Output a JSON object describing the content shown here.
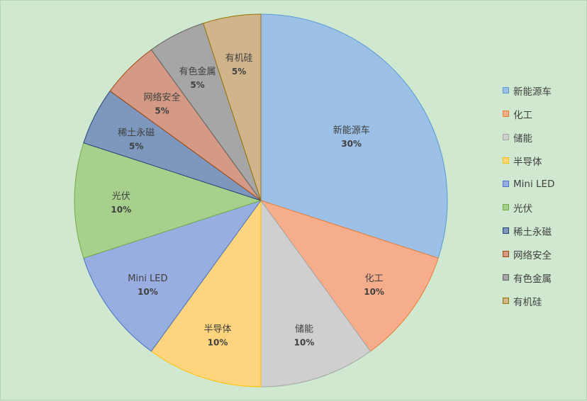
{
  "chart_data": {
    "type": "pie",
    "slices": [
      {
        "label": "新能源车",
        "value": 30,
        "pct_label": "30%",
        "color": "#9dc0e6",
        "edge": "#5b9bd5"
      },
      {
        "label": "化工",
        "value": 10,
        "pct_label": "10%",
        "color": "#f6ad8c",
        "edge": "#ed7d31"
      },
      {
        "label": "储能",
        "value": 10,
        "pct_label": "10%",
        "color": "#cfcfcf",
        "edge": "#a5a5a5"
      },
      {
        "label": "半导体",
        "value": 10,
        "pct_label": "10%",
        "color": "#ffd47f",
        "edge": "#ffc000"
      },
      {
        "label": "Mini LED",
        "value": 10,
        "pct_label": "10%",
        "color": "#98ade0",
        "edge": "#4472c4"
      },
      {
        "label": "光伏",
        "value": 10,
        "pct_label": "10%",
        "color": "#a8d08d",
        "edge": "#70ad47"
      },
      {
        "label": "稀土永磁",
        "value": 5,
        "pct_label": "5%",
        "color": "#7d97bd",
        "edge": "#264478"
      },
      {
        "label": "网络安全",
        "value": 5,
        "pct_label": "5%",
        "color": "#d49a85",
        "edge": "#9e480e"
      },
      {
        "label": "有色金属",
        "value": 5,
        "pct_label": "5%",
        "color": "#a6a6a6",
        "edge": "#636363"
      },
      {
        "label": "有机硅",
        "value": 5,
        "pct_label": "5%",
        "color": "#cfb48c",
        "edge": "#997300"
      }
    ],
    "legend_position": "right"
  }
}
